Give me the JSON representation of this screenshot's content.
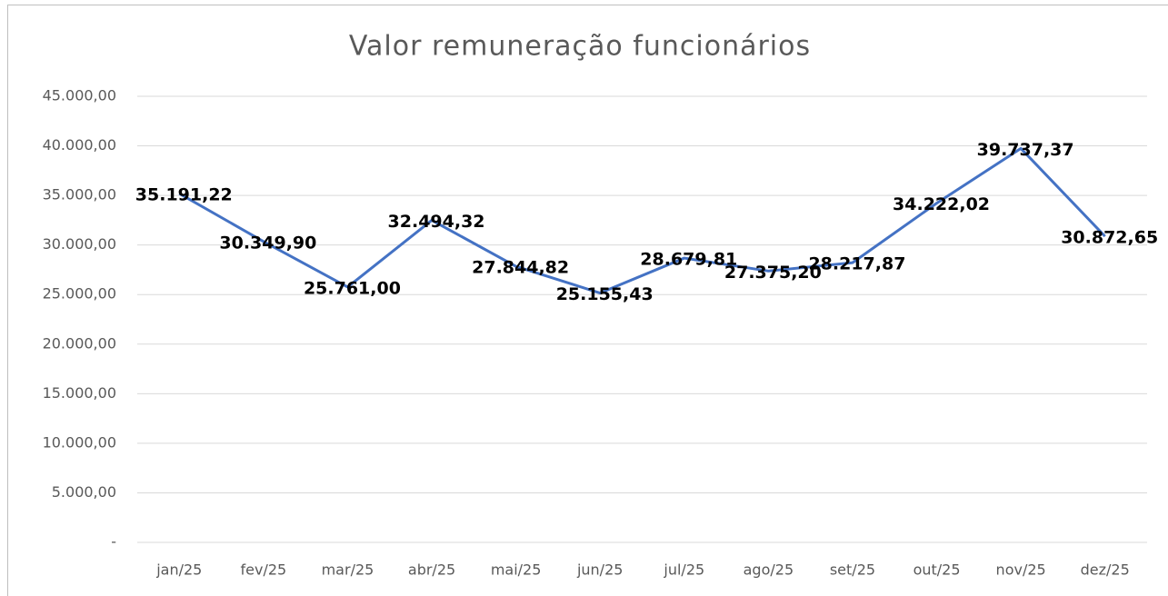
{
  "chart_data": {
    "type": "line",
    "title": "Valor remuneração funcionários",
    "categories": [
      "jan/25",
      "fev/25",
      "mar/25",
      "abr/25",
      "mai/25",
      "jun/25",
      "jul/25",
      "ago/25",
      "set/25",
      "out/25",
      "nov/25",
      "dez/25"
    ],
    "series": [
      {
        "name": "Valor remuneração funcionários",
        "color": "#4472c4",
        "values": [
          35191.22,
          30349.9,
          25761.0,
          32494.32,
          27844.82,
          25155.43,
          28679.81,
          27375.2,
          28217.87,
          34222.02,
          39737.37,
          30872.65
        ],
        "value_labels": [
          "35.191,22",
          "30.349,90",
          "25.761,00",
          "32.494,32",
          "27.844,82",
          "25.155,43",
          "28.679,81",
          "27.375,20",
          "28.217,87",
          "34.222,02",
          "39.737,37",
          "30.872,65"
        ]
      }
    ],
    "ylim": [
      0,
      45000
    ],
    "yticks": [
      {
        "value": 0,
        "label": "-"
      },
      {
        "value": 5000,
        "label": "5.000,00"
      },
      {
        "value": 10000,
        "label": "10.000,00"
      },
      {
        "value": 15000,
        "label": "15.000,00"
      },
      {
        "value": 20000,
        "label": "20.000,00"
      },
      {
        "value": 25000,
        "label": "25.000,00"
      },
      {
        "value": 30000,
        "label": "30.000,00"
      },
      {
        "value": 35000,
        "label": "35.000,00"
      },
      {
        "value": 40000,
        "label": "40.000,00"
      },
      {
        "value": 45000,
        "label": "45.000,00"
      }
    ],
    "grid": true,
    "legend": false
  }
}
